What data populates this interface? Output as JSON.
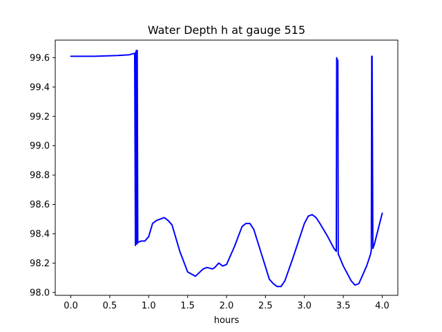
{
  "chart_data": {
    "type": "line",
    "title": "Water Depth h at gauge 515",
    "xlabel": "hours",
    "ylabel": "",
    "xlim": [
      -0.2,
      4.2
    ],
    "ylim": [
      97.98,
      99.72
    ],
    "grid": false,
    "legend": "none",
    "xticks": [
      0.0,
      0.5,
      1.0,
      1.5,
      2.0,
      2.5,
      3.0,
      3.5,
      4.0
    ],
    "xtick_labels": [
      "0.0",
      "0.5",
      "1.0",
      "1.5",
      "2.0",
      "2.5",
      "3.0",
      "3.5",
      "4.0"
    ],
    "yticks": [
      98.0,
      98.2,
      98.4,
      98.6,
      98.8,
      99.0,
      99.2,
      99.4,
      99.6
    ],
    "ytick_labels": [
      "98.0",
      "98.2",
      "98.4",
      "98.6",
      "98.8",
      "99.0",
      "99.2",
      "99.4",
      "99.6"
    ],
    "series": [
      {
        "name": "h",
        "color": "#0000ff",
        "x": [
          0.0,
          0.3,
          0.6,
          0.75,
          0.82,
          0.83,
          0.835,
          0.84,
          0.842,
          0.845,
          0.85,
          0.853,
          0.86,
          0.9,
          0.95,
          1.0,
          1.05,
          1.1,
          1.15,
          1.2,
          1.25,
          1.3,
          1.4,
          1.5,
          1.6,
          1.7,
          1.75,
          1.82,
          1.85,
          1.9,
          1.95,
          2.0,
          2.1,
          2.2,
          2.25,
          2.3,
          2.35,
          2.45,
          2.55,
          2.6,
          2.65,
          2.7,
          2.75,
          2.85,
          3.0,
          3.05,
          3.1,
          3.15,
          3.2,
          3.3,
          3.38,
          3.41,
          3.415,
          3.42,
          3.43,
          3.435,
          3.445,
          3.5,
          3.6,
          3.65,
          3.7,
          3.75,
          3.8,
          3.85,
          3.86,
          3.865,
          3.87,
          3.88,
          3.9,
          4.0
        ],
        "y": [
          99.61,
          99.61,
          99.615,
          99.62,
          99.63,
          98.32,
          99.64,
          98.33,
          99.65,
          98.33,
          98.33,
          99.65,
          98.34,
          98.35,
          98.35,
          98.38,
          98.47,
          98.49,
          98.5,
          98.51,
          98.49,
          98.46,
          98.28,
          98.14,
          98.11,
          98.16,
          98.17,
          98.16,
          98.17,
          98.2,
          98.18,
          98.19,
          98.31,
          98.45,
          98.47,
          98.47,
          98.43,
          98.26,
          98.09,
          98.06,
          98.04,
          98.04,
          98.08,
          98.23,
          98.47,
          98.52,
          98.53,
          98.51,
          98.47,
          98.38,
          98.3,
          98.28,
          99.6,
          99.59,
          99.58,
          98.26,
          98.25,
          98.18,
          98.08,
          98.05,
          98.06,
          98.12,
          98.18,
          98.26,
          98.29,
          99.61,
          99.61,
          98.3,
          98.33,
          98.54
        ]
      }
    ]
  }
}
